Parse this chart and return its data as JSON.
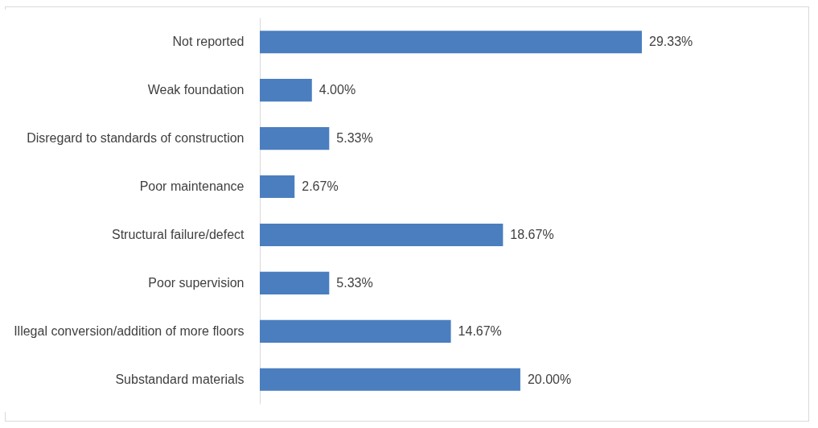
{
  "chart_data": {
    "type": "bar",
    "orientation": "horizontal",
    "categories": [
      "Not reported",
      "Weak foundation",
      "Disregard to standards of construction",
      "Poor maintenance",
      "Structural failure/defect",
      "Poor supervision",
      "Illegal conversion/addition of more floors",
      "Substandard materials"
    ],
    "values": [
      29.33,
      4.0,
      5.33,
      2.67,
      18.67,
      5.33,
      14.67,
      20.0
    ],
    "value_labels": [
      "29.33%",
      "4.00%",
      "5.33%",
      "2.67%",
      "18.67%",
      "5.33%",
      "14.67%",
      "20.00%"
    ],
    "color": "#4a7ebf"
  }
}
